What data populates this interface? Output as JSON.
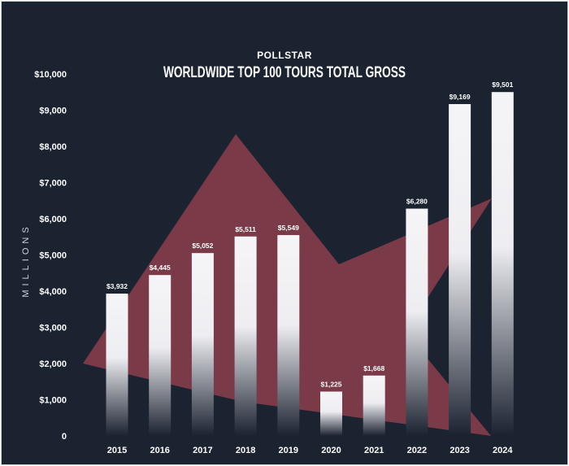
{
  "chart_data": {
    "type": "bar",
    "brand": "POLLSTAR",
    "title": "WORLDWIDE TOP 100 TOURS TOTAL GROSS",
    "ylabel": "MILLIONS",
    "xlabel": "",
    "ylim": [
      0,
      10000
    ],
    "yticks": [
      0,
      1000,
      2000,
      3000,
      4000,
      5000,
      6000,
      7000,
      8000,
      9000,
      10000
    ],
    "ytick_labels": [
      "0",
      "$1,000",
      "$2,000",
      "$3,000",
      "$4,000",
      "$5,000",
      "$6,000",
      "$7,000",
      "$8,000",
      "$9,000",
      "$10,000"
    ],
    "categories": [
      "2015",
      "2016",
      "2017",
      "2018",
      "2019",
      "2020",
      "2021",
      "2022",
      "2023",
      "2024"
    ],
    "values": [
      3932,
      4445,
      5052,
      5511,
      5549,
      1225,
      1668,
      6280,
      9169,
      9501
    ],
    "value_labels": [
      "$3,932",
      "$4,445",
      "$5,052",
      "$5,511",
      "$5,549",
      "$1,225",
      "$1,668",
      "$6,280",
      "$9,169",
      "$9,501"
    ],
    "grid": false,
    "legend": "none",
    "colors": {
      "background": "#1b2230",
      "bar_top": "#f5f5f7",
      "bar_bottom": "#1b2230",
      "star": "#7a3a48",
      "text": "#ffffff"
    }
  }
}
